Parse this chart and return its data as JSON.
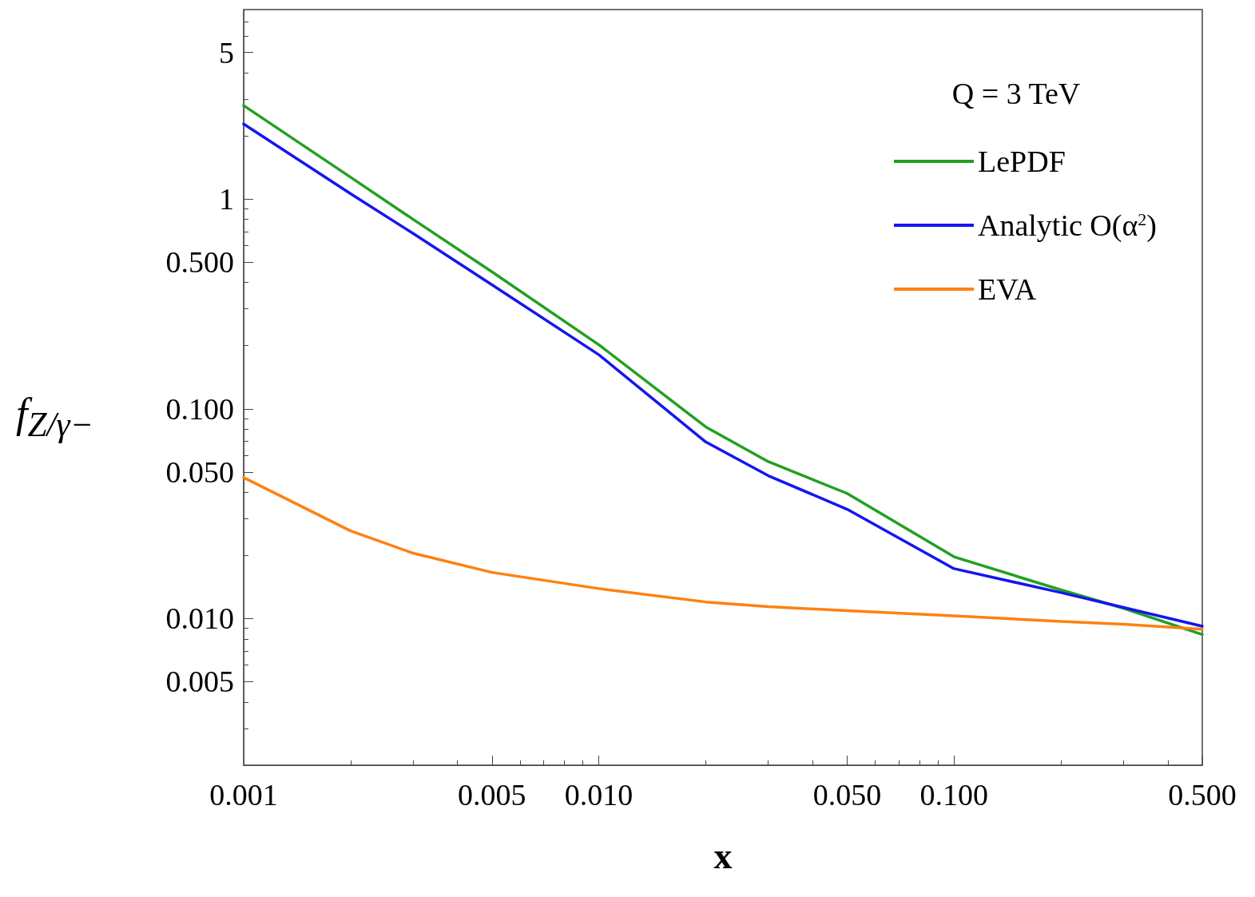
{
  "chart_data": {
    "type": "line",
    "xlabel": "x",
    "ylabel": "f$_{Z/γ−}$",
    "log": "xy",
    "grid": false,
    "legend": "top right",
    "line_style": "solid",
    "marker": "none",
    "annotations": [
      "Q = 3 TeV"
    ],
    "x": [
      0.001,
      0.002,
      0.003,
      0.005,
      0.01,
      0.02,
      0.03,
      0.05,
      0.1,
      0.2,
      0.3,
      0.5
    ],
    "xlim": [
      0.001,
      0.5
    ],
    "xticks": [
      {
        "value": 0.001,
        "label": "0.001"
      },
      {
        "value": 0.005,
        "label": "0.005"
      },
      {
        "value": 0.01,
        "label": "0.010"
      },
      {
        "value": 0.05,
        "label": "0.050"
      },
      {
        "value": 0.1,
        "label": "0.100"
      },
      {
        "value": 0.5,
        "label": "0.500"
      }
    ],
    "ylim": [
      0.002,
      8
    ],
    "yticks": [
      {
        "value": 0.005,
        "label": "0.005"
      },
      {
        "value": 0.01,
        "label": "0.010"
      },
      {
        "value": 0.05,
        "label": "0.050"
      },
      {
        "value": 0.1,
        "label": "0.100"
      },
      {
        "value": 0.5,
        "label": "0.500"
      },
      1,
      5
    ],
    "series": [
      {
        "name": "LePDF",
        "color": "#22a022",
        "values": [
          2.79,
          1.27,
          0.8,
          0.45,
          0.202,
          0.082,
          0.056,
          0.0395,
          0.0197,
          0.0137,
          0.0112,
          0.0084
        ]
      },
      {
        "name": "Analytic O(α$^{2}$)",
        "color": "#1515f0",
        "values": [
          2.28,
          1.06,
          0.685,
          0.39,
          0.181,
          0.0695,
          0.048,
          0.0332,
          0.0173,
          0.0133,
          0.0113,
          0.0092
        ]
      },
      {
        "name": "EVA",
        "color": "#ff8010",
        "values": [
          0.047,
          0.0262,
          0.0205,
          0.0166,
          0.0139,
          0.012,
          0.0114,
          0.0109,
          0.0103,
          0.0097,
          0.0094,
          0.0089
        ]
      }
    ]
  }
}
